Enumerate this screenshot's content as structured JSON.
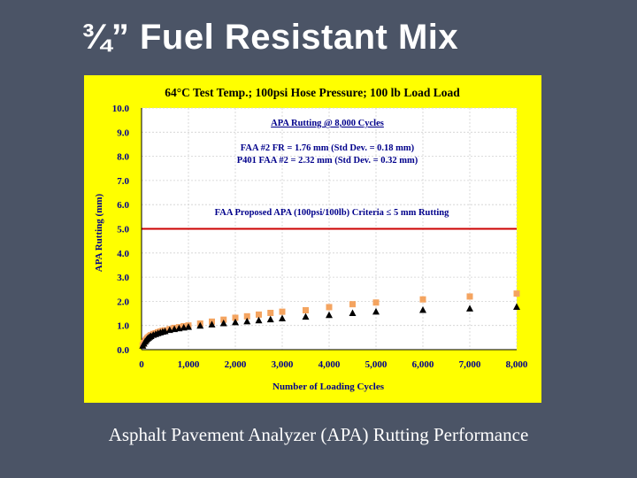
{
  "slide": {
    "title": "¾” Fuel Resistant Mix",
    "caption": "Asphalt Pavement Analyzer (APA) Rutting Performance"
  },
  "colors": {
    "background": "#4b5466",
    "panel": "#ffff00",
    "plot_area": "#ffffff",
    "criteria_line": "#cc0000",
    "series_fr": "#f4a460",
    "series_p401": "#000000"
  },
  "chart_data": {
    "type": "scatter",
    "title": "64°C Test Temp.; 100psi Hose Pressure; 100 lb Load Load",
    "xlabel": "Number of Loading Cycles",
    "ylabel": "APA Rutting (mm)",
    "xlim": [
      0,
      8000
    ],
    "ylim": [
      0,
      10
    ],
    "x_ticks": [
      0,
      1000,
      2000,
      3000,
      4000,
      5000,
      6000,
      7000,
      8000
    ],
    "x_tick_labels": [
      "0",
      "1,000",
      "2,000",
      "3,000",
      "4,000",
      "5,000",
      "6,000",
      "7,000",
      "8,000"
    ],
    "y_ticks": [
      0,
      1,
      2,
      3,
      4,
      5,
      6,
      7,
      8,
      9,
      10
    ],
    "y_tick_labels": [
      "0.0",
      "1.0",
      "2.0",
      "3.0",
      "4.0",
      "5.0",
      "6.0",
      "7.0",
      "8.0",
      "9.0",
      "10.0"
    ],
    "grid": true,
    "annotations": {
      "heading": "APA Rutting @ 8,000 Cycles",
      "line1": "FAA #2 FR = 1.76 mm (Std Dev. = 0.18 mm)",
      "line2": "P401 FAA #2 = 2.32 mm (Std Dev. = 0.32 mm)",
      "criteria": "FAA Proposed APA (100psi/100lb) Criteria ≤ 5 mm Rutting"
    },
    "criteria_value": 5.0,
    "series": [
      {
        "name": "P401 FAA #2",
        "marker": "square",
        "x": [
          25,
          50,
          75,
          100,
          125,
          150,
          175,
          200,
          250,
          300,
          350,
          400,
          450,
          500,
          600,
          700,
          800,
          900,
          1000,
          1250,
          1500,
          1750,
          2000,
          2250,
          2500,
          2750,
          3000,
          3500,
          4000,
          4500,
          5000,
          6000,
          7000,
          8000
        ],
        "y": [
          0.18,
          0.28,
          0.36,
          0.42,
          0.48,
          0.52,
          0.56,
          0.6,
          0.65,
          0.68,
          0.72,
          0.75,
          0.78,
          0.8,
          0.85,
          0.9,
          0.93,
          0.97,
          1.0,
          1.08,
          1.16,
          1.24,
          1.32,
          1.38,
          1.45,
          1.52,
          1.57,
          1.63,
          1.76,
          1.88,
          1.95,
          2.08,
          2.2,
          2.32
        ]
      },
      {
        "name": "FAA #2 FR",
        "marker": "triangle",
        "x": [
          25,
          50,
          75,
          100,
          125,
          150,
          175,
          200,
          250,
          300,
          350,
          400,
          450,
          500,
          600,
          700,
          800,
          900,
          1000,
          1250,
          1500,
          1750,
          2000,
          2250,
          2500,
          2750,
          3000,
          3500,
          4000,
          4500,
          5000,
          6000,
          7000,
          8000
        ],
        "y": [
          0.15,
          0.24,
          0.32,
          0.38,
          0.44,
          0.48,
          0.52,
          0.55,
          0.6,
          0.63,
          0.67,
          0.7,
          0.73,
          0.75,
          0.8,
          0.84,
          0.87,
          0.9,
          0.93,
          0.98,
          1.03,
          1.08,
          1.12,
          1.16,
          1.2,
          1.24,
          1.28,
          1.35,
          1.42,
          1.5,
          1.56,
          1.63,
          1.69,
          1.76
        ]
      }
    ]
  }
}
